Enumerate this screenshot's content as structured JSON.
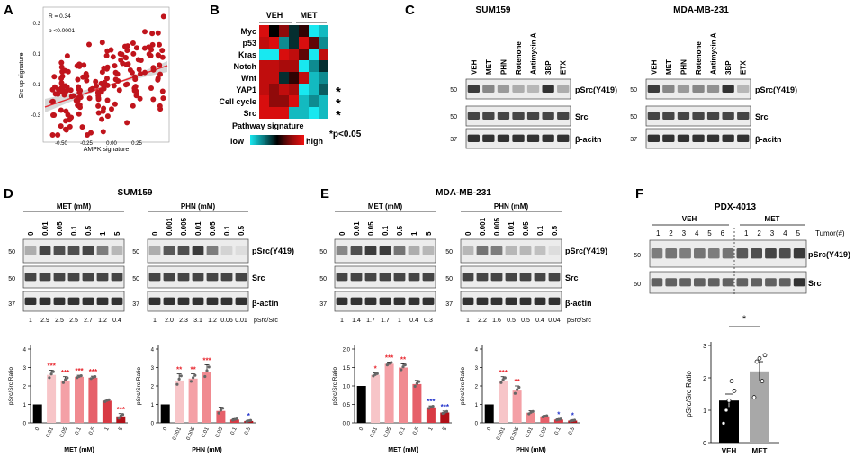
{
  "panels": {
    "A": {
      "letter": "A",
      "stats_r": "R = 0.34",
      "stats_p": "p <0.0001",
      "xlabel": "AMPK signature",
      "ylabel": "Src up signature",
      "xticks": [
        "-0.50",
        "-0.25",
        "0.00",
        "0.25"
      ],
      "yticks": [
        "0.3",
        "0.1",
        "-0.1",
        "-0.3"
      ],
      "dot_color": "#c0141c"
    },
    "B": {
      "letter": "B",
      "col_veh": "VEH",
      "col_met": "MET",
      "rows": [
        "Myc",
        "p53",
        "Kras",
        "Notch",
        "Wnt",
        "YAP1",
        "Cell cycle",
        "Src"
      ],
      "star_rows": [
        "YAP1",
        "Cell cycle",
        "Src"
      ],
      "star": "*",
      "legend_title": "Pathway signature",
      "legend_low": "low",
      "legend_high": "high",
      "sig_note": "*p<0.05",
      "matrix": [
        [
          0.95,
          0.5,
          0.8,
          0.4,
          0.6,
          0.0,
          0.1
        ],
        [
          0.9,
          0.95,
          0.2,
          0.4,
          0.95,
          0.7,
          0.2
        ],
        [
          0.0,
          0.0,
          0.95,
          0.9,
          0.7,
          0.0,
          0.9
        ],
        [
          0.9,
          0.9,
          0.85,
          0.85,
          0.0,
          0.2,
          0.4
        ],
        [
          0.9,
          0.9,
          0.4,
          0.6,
          0.9,
          0.1,
          0.2
        ],
        [
          0.9,
          0.8,
          0.9,
          0.85,
          0.0,
          0.1,
          0.3
        ],
        [
          0.95,
          0.8,
          0.8,
          0.95,
          0.1,
          0.2,
          0.1
        ],
        [
          0.95,
          0.95,
          0.95,
          0.1,
          0.1,
          0.0,
          0.1
        ]
      ]
    },
    "C": {
      "letter": "C",
      "blot1_title": "SUM159",
      "blot2_title": "MDA-MB-231",
      "lanes": [
        "VEH",
        "MET",
        "PHN",
        "Rotenone",
        "Antimycin A",
        "3BP",
        "ETX"
      ],
      "bands": [
        "pSrc(Y419)",
        "Src",
        "β-acitn"
      ],
      "mw": [
        "50",
        "50",
        "37"
      ],
      "blot1_psrc": [
        0.9,
        0.5,
        0.4,
        0.3,
        0.25,
        0.95,
        0.3
      ],
      "blot2_psrc": [
        0.9,
        0.5,
        0.4,
        0.5,
        0.45,
        0.95,
        0.25
      ]
    },
    "D": {
      "letter": "D",
      "title": "SUM159",
      "met_header": "MET (mM)",
      "phn_header": "PHN (mM)",
      "met_doses": [
        "0",
        "0.01",
        "0.05",
        "0.1",
        "0.5",
        "1",
        "5"
      ],
      "phn_doses": [
        "0",
        "0.001",
        "0.005",
        "0.01",
        "0.05",
        "0.1",
        "0.5"
      ],
      "bands": [
        "pSrc(Y419)",
        "Src",
        "β-actin"
      ],
      "mw": [
        "50",
        "50",
        "37"
      ],
      "ratio_label": "pSrc/Src",
      "met_ratios": [
        "1",
        "2.9",
        "2.5",
        "2.5",
        "2.7",
        "1.2",
        "0.4"
      ],
      "phn_ratios": [
        "1",
        "2.0",
        "2.3",
        "3.1",
        "1.2",
        "0.06",
        "0.01"
      ]
    },
    "E": {
      "letter": "E",
      "title": "MDA-MB-231",
      "met_header": "MET (mM)",
      "phn_header": "PHN (mM)",
      "met_doses": [
        "0",
        "0.01",
        "0.05",
        "0.1",
        "0.5",
        "1",
        "5"
      ],
      "phn_doses": [
        "0",
        "0.001",
        "0.005",
        "0.01",
        "0.05",
        "0.1",
        "0.5"
      ],
      "bands": [
        "pSrc(Y419)",
        "Src",
        "β-actin"
      ],
      "mw": [
        "50",
        "50",
        "37"
      ],
      "ratio_label": "pSrc/Src",
      "met_ratios": [
        "1",
        "1.4",
        "1.7",
        "1.7",
        "1",
        "0.4",
        "0.3"
      ],
      "phn_ratios": [
        "1",
        "2.2",
        "1.6",
        "0.5",
        "0.5",
        "0.4",
        "0.04"
      ]
    },
    "F": {
      "letter": "F",
      "title": "PDX-4013",
      "veh_label": "VEH",
      "met_label": "MET",
      "tumor_label": "Tumor(#)",
      "veh_numbers": [
        "1",
        "2",
        "3",
        "4",
        "5",
        "6"
      ],
      "met_numbers": [
        "1",
        "2",
        "3",
        "4",
        "5"
      ],
      "bands": [
        "pSrc(Y419)",
        "Src"
      ],
      "mw": [
        "50",
        "50"
      ]
    }
  },
  "chart_data": [
    {
      "type": "bar",
      "title": "SUM159 MET",
      "categories": [
        "0",
        "0.01",
        "0.05",
        "0.1",
        "0.5",
        "1",
        "5"
      ],
      "values": [
        1.0,
        2.6,
        2.3,
        2.5,
        2.45,
        1.2,
        0.35
      ],
      "errors": [
        0,
        0.25,
        0.2,
        0.08,
        0.08,
        0.08,
        0.15
      ],
      "stars": [
        "",
        "***",
        "***",
        "***",
        "***",
        "",
        "***"
      ],
      "star_color": "#e8242c",
      "xlabel": "MET (mM)",
      "ylabel": "pSrc/Src Ratio",
      "yticks": [
        "4",
        "3",
        "2",
        "1",
        "0"
      ],
      "ylim": [
        0,
        4
      ],
      "colors": [
        "#000000",
        "#f7c5c8",
        "#f4a0a6",
        "#f08a90",
        "#e6606a",
        "#d83a44",
        "#b01018"
      ]
    },
    {
      "type": "bar",
      "title": "SUM159 PHN",
      "categories": [
        "0",
        "0.001",
        "0.005",
        "0.01",
        "0.05",
        "0.1",
        "0.5"
      ],
      "values": [
        1.0,
        2.3,
        2.4,
        2.75,
        0.65,
        0.18,
        0.1
      ],
      "errors": [
        0,
        0.35,
        0.25,
        0.4,
        0.2,
        0.05,
        0.05
      ],
      "stars": [
        "",
        "**",
        "**",
        "***",
        "",
        "",
        "*"
      ],
      "star_colors": [
        "#e8242c",
        "#e8242c",
        "#e8242c",
        "#e8242c",
        "#e8242c",
        "#e8242c",
        "#2233cc"
      ],
      "xlabel": "PHN (mM)",
      "ylabel": "pSrc/Src Ratio",
      "yticks": [
        "4",
        "3",
        "2",
        "1",
        "0"
      ],
      "ylim": [
        0,
        4
      ],
      "colors": [
        "#000000",
        "#f7c5c8",
        "#f4a0a6",
        "#f08a90",
        "#e6606a",
        "#d83a44",
        "#b01018"
      ]
    },
    {
      "type": "bar",
      "title": "MDA-MB-231 MET",
      "categories": [
        "0",
        "0.01",
        "0.05",
        "0.1",
        "0.5",
        "1",
        "5"
      ],
      "values": [
        1.0,
        1.3,
        1.6,
        1.5,
        1.05,
        0.42,
        0.28
      ],
      "errors": [
        0,
        0.05,
        0.05,
        0.1,
        0.1,
        0.04,
        0.04
      ],
      "stars": [
        "",
        "*",
        "***",
        "**",
        "",
        "***",
        "***"
      ],
      "star_colors": [
        "#e8242c",
        "#e8242c",
        "#e8242c",
        "#e8242c",
        "#e8242c",
        "#2233cc",
        "#2233cc"
      ],
      "xlabel": "MET (mM)",
      "ylabel": "pSrc/Src Ratio",
      "yticks": [
        "2.0",
        "1.5",
        "1.0",
        "0.5",
        "0.0"
      ],
      "ylim": [
        0,
        2.0
      ],
      "colors": [
        "#000000",
        "#f7c5c8",
        "#f4a0a6",
        "#f08a90",
        "#e6606a",
        "#d83a44",
        "#b01018"
      ]
    },
    {
      "type": "bar",
      "title": "MDA-MB-231 PHN",
      "categories": [
        "0",
        "0.001",
        "0.005",
        "0.01",
        "0.05",
        "0.1",
        "0.5"
      ],
      "values": [
        1.0,
        2.3,
        1.75,
        0.55,
        0.35,
        0.18,
        0.12
      ],
      "errors": [
        0,
        0.2,
        0.25,
        0.1,
        0.05,
        0.04,
        0.04
      ],
      "stars": [
        "",
        "***",
        "**",
        "",
        "",
        "*",
        "*"
      ],
      "star_colors": [
        "#e8242c",
        "#e8242c",
        "#e8242c",
        "#e8242c",
        "#e8242c",
        "#2233cc",
        "#2233cc"
      ],
      "xlabel": "PHN (mM)",
      "ylabel": "pSrc/Src Ratio",
      "yticks": [
        "4",
        "3",
        "2",
        "1",
        "0"
      ],
      "ylim": [
        0,
        4
      ],
      "colors": [
        "#000000",
        "#f7c5c8",
        "#f4a0a6",
        "#f08a90",
        "#e6606a",
        "#d83a44",
        "#b01018"
      ]
    },
    {
      "type": "bar",
      "title": "PDX-4013",
      "categories": [
        "VEH",
        "MET"
      ],
      "values": [
        1.3,
        2.2
      ],
      "errors": [
        0.2,
        0.3
      ],
      "sig": "*",
      "xlabel": "",
      "ylabel": "pSrc/Src Ratio",
      "yticks": [
        "3",
        "2",
        "1",
        "0"
      ],
      "ylim": [
        0,
        3
      ],
      "colors": [
        "#000000",
        "#a8a8a8"
      ]
    }
  ]
}
